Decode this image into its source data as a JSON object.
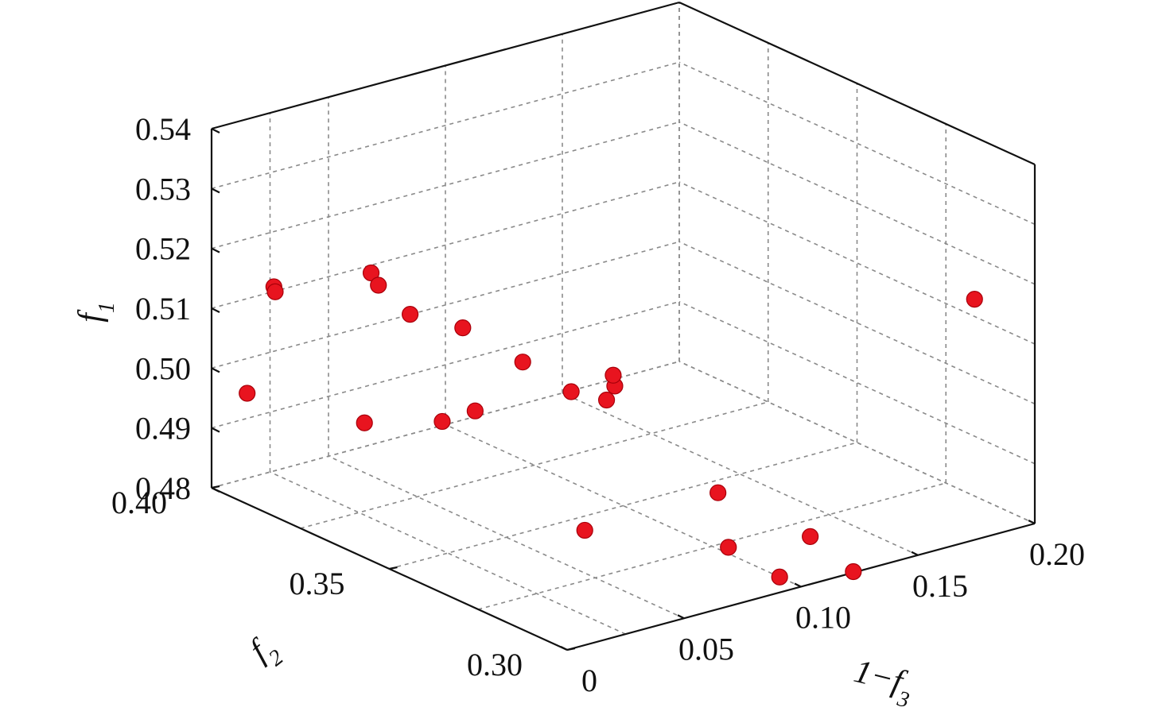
{
  "chart_data": {
    "type": "scatter3d",
    "title": "",
    "zlabel": "f",
    "zlabel_sub": "1",
    "ylabel": "f",
    "ylabel_sub": "2",
    "xlabel": "1−f",
    "xlabel_sub": "3",
    "xlim": [
      0,
      0.2
    ],
    "ylim": [
      0.3,
      0.4
    ],
    "zlim": [
      0.48,
      0.54
    ],
    "x_ticks": [
      "0",
      "0.05",
      "0.10",
      "0.15",
      "0.20"
    ],
    "y_ticks": [
      "0.30",
      "0.35",
      "0.40"
    ],
    "z_ticks": [
      "0.48",
      "0.49",
      "0.50",
      "0.51",
      "0.52",
      "0.53",
      "0.54"
    ],
    "grid": true,
    "marker_color": "#e8141f",
    "points": [
      {
        "x": 0.0,
        "y": 0.39,
        "z": 0.4985
      },
      {
        "x": 0.0,
        "y": 0.357,
        "z": 0.5025
      },
      {
        "x": 0.018,
        "y": 0.356,
        "z": 0.519
      },
      {
        "x": 0.016,
        "y": 0.393,
        "z": 0.5138
      },
      {
        "x": 0.012,
        "y": 0.39,
        "z": 0.5142
      },
      {
        "x": 0.015,
        "y": 0.365,
        "z": 0.5238
      },
      {
        "x": 0.009,
        "y": 0.359,
        "z": 0.524
      },
      {
        "x": 0.039,
        "y": 0.355,
        "z": 0.5148
      },
      {
        "x": 0.015,
        "y": 0.345,
        "z": 0.5044
      },
      {
        "x": 0.023,
        "y": 0.341,
        "z": 0.5064
      },
      {
        "x": 0.054,
        "y": 0.348,
        "z": 0.5094
      },
      {
        "x": 0.058,
        "y": 0.337,
        "z": 0.507
      },
      {
        "x": 0.066,
        "y": 0.33,
        "z": 0.509
      },
      {
        "x": 0.064,
        "y": 0.331,
        "z": 0.5066
      },
      {
        "x": 0.079,
        "y": 0.339,
        "z": 0.507
      },
      {
        "x": 0.072,
        "y": 0.302,
        "z": 0.489
      },
      {
        "x": 0.041,
        "y": 0.322,
        "z": 0.4897
      },
      {
        "x": 0.101,
        "y": 0.324,
        "z": 0.4891
      },
      {
        "x": 0.107,
        "y": 0.302,
        "z": 0.4871
      },
      {
        "x": 0.1,
        "y": 0.306,
        "z": 0.48
      },
      {
        "x": 0.13,
        "y": 0.305,
        "z": 0.478
      },
      {
        "x": 0.194,
        "y": 0.313,
        "z": 0.5146
      }
    ]
  }
}
